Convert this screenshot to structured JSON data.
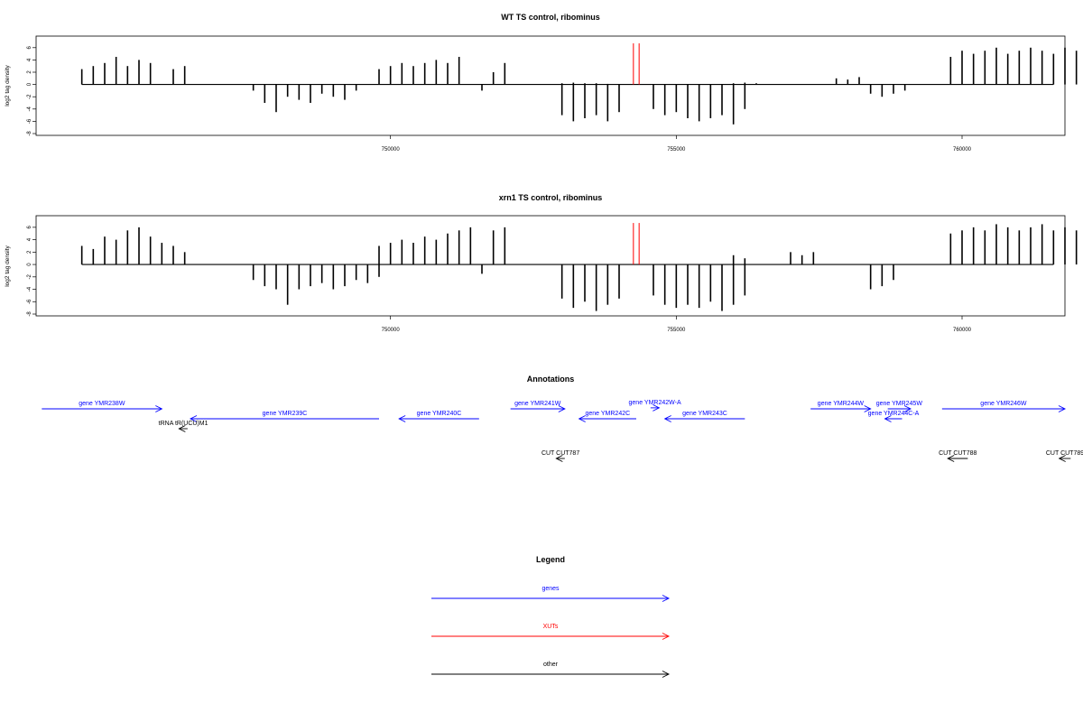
{
  "chart_data": [
    {
      "type": "bar",
      "title": "WT TS control, ribominus",
      "xlabel": "",
      "ylabel": "log2 tag density",
      "ylim": [
        -8,
        7
      ],
      "xlim": [
        743800,
        761800
      ],
      "y_ticks": [
        "6",
        "4",
        "2",
        "0",
        "-2",
        "-4",
        "-6",
        "-8"
      ],
      "x_ticks": [
        "750000",
        "755000",
        "760000"
      ],
      "xut_marker_positions": [
        754250,
        754350
      ],
      "series": [
        {
          "name": "plus",
          "x": [
            744600,
            744800,
            745000,
            745200,
            745400,
            745600,
            745800,
            746200,
            746400,
            749800,
            750000,
            750200,
            750400,
            750600,
            750800,
            751000,
            751200,
            751800,
            752000,
            753000,
            753200,
            753400,
            753600,
            753800,
            756000,
            756200,
            756400,
            757800,
            758000,
            758200,
            759800,
            760000,
            760200,
            760400,
            760600,
            760800,
            761000,
            761200,
            761400,
            761600,
            761800,
            762000,
            762200,
            762400
          ],
          "values": [
            2.5,
            3.0,
            3.5,
            4.5,
            3.0,
            4.0,
            3.5,
            2.5,
            3.0,
            2.5,
            3.0,
            3.5,
            3.0,
            3.5,
            4.0,
            3.5,
            4.5,
            2.0,
            3.5,
            0.2,
            0.3,
            0.2,
            0.2,
            0.1,
            0.2,
            0.3,
            0.2,
            1.0,
            0.8,
            1.2,
            4.5,
            5.5,
            5.0,
            5.5,
            6.0,
            5.0,
            5.5,
            6.0,
            5.5,
            5.0,
            6.0,
            5.5,
            6.5,
            5.0
          ]
        },
        {
          "name": "minus",
          "x": [
            747600,
            747800,
            748000,
            748200,
            748400,
            748600,
            748800,
            749000,
            749200,
            749400,
            751600,
            753000,
            753200,
            753400,
            753600,
            753800,
            754000,
            754600,
            754800,
            755000,
            755200,
            755400,
            755600,
            755800,
            756000,
            756200,
            758400,
            758600,
            758800,
            759000
          ],
          "values": [
            -1.0,
            -3.0,
            -4.5,
            -2.0,
            -2.5,
            -3.0,
            -1.5,
            -2.0,
            -2.5,
            -1.0,
            -1.0,
            -5.0,
            -6.0,
            -5.5,
            -5.0,
            -6.0,
            -4.5,
            -4.0,
            -5.0,
            -4.5,
            -5.5,
            -6.0,
            -5.5,
            -5.0,
            -6.5,
            -4.0,
            -1.5,
            -2.0,
            -1.5,
            -1.0
          ]
        }
      ]
    },
    {
      "type": "bar",
      "title": "xrn1 TS control, ribominus",
      "xlabel": "",
      "ylabel": "log2 tag density",
      "ylim": [
        -8,
        7
      ],
      "xlim": [
        743800,
        761800
      ],
      "y_ticks": [
        "6",
        "4",
        "2",
        "0",
        "-2",
        "-4",
        "-6",
        "-8"
      ],
      "x_ticks": [
        "750000",
        "755000",
        "760000"
      ],
      "xut_marker_positions": [
        754250,
        754350
      ],
      "series": [
        {
          "name": "plus",
          "x": [
            744600,
            744800,
            745000,
            745200,
            745400,
            745600,
            745800,
            746000,
            746200,
            746400,
            749800,
            750000,
            750200,
            750400,
            750600,
            750800,
            751000,
            751200,
            751400,
            751800,
            752000,
            756000,
            756200,
            757000,
            757200,
            757400,
            759800,
            760000,
            760200,
            760400,
            760600,
            760800,
            761000,
            761200,
            761400,
            761600,
            761800,
            762000,
            762200
          ],
          "values": [
            3.0,
            2.5,
            4.5,
            4.0,
            5.5,
            6.0,
            4.5,
            3.5,
            3.0,
            2.0,
            3.0,
            3.5,
            4.0,
            3.5,
            4.5,
            4.0,
            5.0,
            5.5,
            6.0,
            5.5,
            6.0,
            1.5,
            1.0,
            2.0,
            1.5,
            2.0,
            5.0,
            5.5,
            6.0,
            5.5,
            6.5,
            6.0,
            5.5,
            6.0,
            6.5,
            5.5,
            6.0,
            5.5,
            5.0
          ]
        },
        {
          "name": "minus",
          "x": [
            747600,
            747800,
            748000,
            748200,
            748400,
            748600,
            748800,
            749000,
            749200,
            749400,
            749600,
            749800,
            751600,
            753000,
            753200,
            753400,
            753600,
            753800,
            754000,
            754600,
            754800,
            755000,
            755200,
            755400,
            755600,
            755800,
            756000,
            756200,
            758400,
            758600,
            758800
          ],
          "values": [
            -2.5,
            -3.5,
            -4.0,
            -6.5,
            -4.0,
            -3.5,
            -3.0,
            -4.0,
            -3.5,
            -2.5,
            -3.0,
            -2.0,
            -1.5,
            -5.5,
            -7.0,
            -6.0,
            -7.5,
            -6.5,
            -5.5,
            -5.0,
            -6.5,
            -7.0,
            -6.5,
            -7.0,
            -6.0,
            -7.5,
            -6.5,
            -5.0,
            -4.0,
            -3.5,
            -2.5
          ]
        }
      ]
    }
  ],
  "annotations": {
    "title": "Annotations",
    "features": [
      {
        "label": "gene YMR238W",
        "kind": "genes",
        "strand": "+",
        "start": 743900,
        "end": 746000,
        "row": 0
      },
      {
        "label": "gene YMR239C",
        "kind": "genes",
        "strand": "-",
        "start": 746500,
        "end": 749800,
        "row": 1
      },
      {
        "label": "gene YMR240C",
        "kind": "genes",
        "strand": "-",
        "start": 750150,
        "end": 751550,
        "row": 1
      },
      {
        "label": "gene YMR241W",
        "kind": "genes",
        "strand": "+",
        "start": 752100,
        "end": 753050,
        "row": 0
      },
      {
        "label": "gene YMR242W-A",
        "kind": "genes",
        "strand": "+",
        "start": 754550,
        "end": 754700,
        "row": -0.1
      },
      {
        "label": "gene YMR242C",
        "kind": "genes",
        "strand": "-",
        "start": 753300,
        "end": 754300,
        "row": 1
      },
      {
        "label": "gene YMR243C",
        "kind": "genes",
        "strand": "-",
        "start": 754800,
        "end": 756200,
        "row": 1
      },
      {
        "label": "gene YMR244W",
        "kind": "genes",
        "strand": "+",
        "start": 757350,
        "end": 758400,
        "row": 0
      },
      {
        "label": "gene YMR245W",
        "kind": "genes",
        "strand": "+",
        "start": 758700,
        "end": 759100,
        "row": 0
      },
      {
        "label": "gene YMR244C-A",
        "kind": "genes",
        "strand": "-",
        "start": 758650,
        "end": 758950,
        "row": 1
      },
      {
        "label": "gene YMR246W",
        "kind": "genes",
        "strand": "+",
        "start": 759650,
        "end": 761800,
        "row": 0
      },
      {
        "label": "tRNA tR(UCU)M1",
        "kind": "other",
        "strand": "-",
        "start": 746300,
        "end": 746450,
        "row": 2
      },
      {
        "label": "CUT CUT787",
        "kind": "other",
        "strand": "-",
        "start": 752900,
        "end": 753050,
        "row": 5
      },
      {
        "label": "CUT CUT788",
        "kind": "other",
        "strand": "-",
        "start": 759750,
        "end": 760100,
        "row": 5
      },
      {
        "label": "CUT CUT789",
        "kind": "other",
        "strand": "-",
        "start": 761700,
        "end": 761900,
        "row": 5
      }
    ]
  },
  "legend": {
    "title": "Legend",
    "items": [
      {
        "label": "genes",
        "color": "#0000ff"
      },
      {
        "label": "XUTs",
        "color": "#ff0000"
      },
      {
        "label": "other",
        "color": "#000000"
      }
    ]
  },
  "colors": {
    "genes": "#0000ff",
    "XUTs": "#ff0000",
    "other": "#000000",
    "bars": "#000000"
  }
}
